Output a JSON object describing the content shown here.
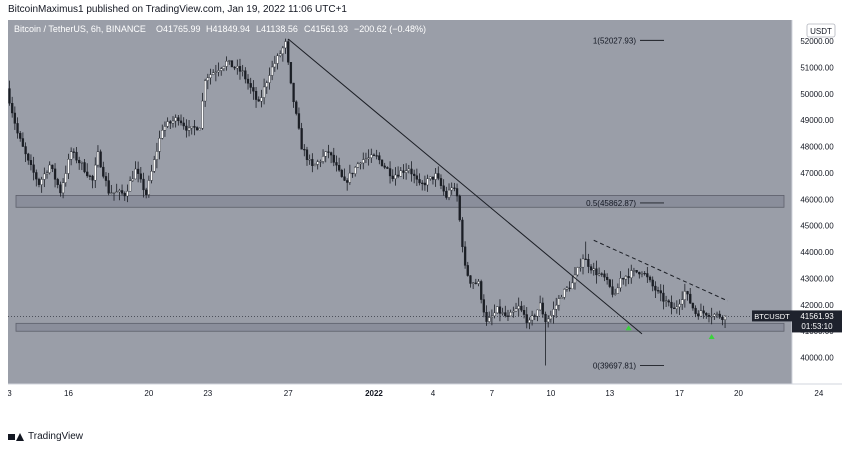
{
  "header": {
    "publisher_line": "BitcoinMaximus1 published on TradingView.com, Jan 19, 2022 11:06 UTC+1"
  },
  "chart_data": {
    "type": "candlestick",
    "title": "Bitcoin / TetherUS, 6h, BINANCE",
    "ohlc_label": {
      "o": "O41765.99",
      "h": "H41849.94",
      "l": "L41138.56",
      "c": "C41561.93",
      "chg": "−200.62 (−0.48%)"
    },
    "currency": "USDT",
    "ylim": [
      39000,
      52800
    ],
    "y_ticks": [
      40000,
      41000,
      42000,
      43000,
      44000,
      45000,
      46000,
      47000,
      48000,
      49000,
      50000,
      51000,
      52000
    ],
    "y_tick_labels": [
      "40000.00",
      "41000.00",
      "42000.00",
      "43000.00",
      "44000.00",
      "45000.00",
      "46000.00",
      "47000.00",
      "48000.00",
      "49000.00",
      "50000.00",
      "51000.00",
      "52000.00"
    ],
    "x_tick_labels": [
      "3",
      "16",
      "20",
      "23",
      "27",
      "2022",
      "4",
      "7",
      "10",
      "13",
      "17",
      "20",
      "24"
    ],
    "x_tick_index": [
      0,
      22,
      52,
      74,
      104,
      136,
      158,
      180,
      202,
      224,
      250,
      272,
      302
    ],
    "candle_count": 268,
    "key_prices": [
      {
        "d": 0,
        "p": 50200
      },
      {
        "d": 4,
        "p": 48500
      },
      {
        "d": 8,
        "p": 47400
      },
      {
        "d": 12,
        "p": 46600
      },
      {
        "d": 16,
        "p": 47300
      },
      {
        "d": 20,
        "p": 46300
      },
      {
        "d": 24,
        "p": 47800
      },
      {
        "d": 28,
        "p": 47300
      },
      {
        "d": 32,
        "p": 46700
      },
      {
        "d": 34,
        "p": 47700
      },
      {
        "d": 38,
        "p": 46300
      },
      {
        "d": 44,
        "p": 46200
      },
      {
        "d": 48,
        "p": 47100
      },
      {
        "d": 52,
        "p": 46200
      },
      {
        "d": 58,
        "p": 48700
      },
      {
        "d": 64,
        "p": 49100
      },
      {
        "d": 68,
        "p": 48600
      },
      {
        "d": 72,
        "p": 48800
      },
      {
        "d": 74,
        "p": 50600
      },
      {
        "d": 82,
        "p": 51200
      },
      {
        "d": 88,
        "p": 50800
      },
      {
        "d": 94,
        "p": 49600
      },
      {
        "d": 98,
        "p": 50800
      },
      {
        "d": 104,
        "p": 51900
      },
      {
        "d": 106,
        "p": 50300
      },
      {
        "d": 110,
        "p": 48000
      },
      {
        "d": 114,
        "p": 47200
      },
      {
        "d": 120,
        "p": 47800
      },
      {
        "d": 126,
        "p": 46600
      },
      {
        "d": 132,
        "p": 47500
      },
      {
        "d": 138,
        "p": 47600
      },
      {
        "d": 144,
        "p": 46900
      },
      {
        "d": 150,
        "p": 47200
      },
      {
        "d": 154,
        "p": 46500
      },
      {
        "d": 160,
        "p": 46900
      },
      {
        "d": 164,
        "p": 46100
      },
      {
        "d": 166,
        "p": 46500
      },
      {
        "d": 168,
        "p": 46100
      },
      {
        "d": 171,
        "p": 43400
      },
      {
        "d": 173,
        "p": 42900
      },
      {
        "d": 176,
        "p": 42800
      },
      {
        "d": 179,
        "p": 41300
      },
      {
        "d": 183,
        "p": 41800
      },
      {
        "d": 187,
        "p": 41500
      },
      {
        "d": 191,
        "p": 41900
      },
      {
        "d": 195,
        "p": 41300
      },
      {
        "d": 199,
        "p": 42000
      },
      {
        "d": 201,
        "p": 41400
      },
      {
        "d": 203,
        "p": 41600
      },
      {
        "d": 207,
        "p": 42400
      },
      {
        "d": 211,
        "p": 42800
      },
      {
        "d": 215,
        "p": 43800
      },
      {
        "d": 219,
        "p": 43300
      },
      {
        "d": 223,
        "p": 43000
      },
      {
        "d": 227,
        "p": 42300
      },
      {
        "d": 229,
        "p": 43000
      },
      {
        "d": 233,
        "p": 43200
      },
      {
        "d": 237,
        "p": 43300
      },
      {
        "d": 241,
        "p": 42700
      },
      {
        "d": 245,
        "p": 42200
      },
      {
        "d": 249,
        "p": 41800
      },
      {
        "d": 253,
        "p": 42500
      },
      {
        "d": 257,
        "p": 41700
      },
      {
        "d": 261,
        "p": 41700
      },
      {
        "d": 265,
        "p": 41600
      },
      {
        "d": 267,
        "p": 41562
      }
    ],
    "extreme_wicks": [
      {
        "d": 104,
        "high": 52080
      },
      {
        "d": 200,
        "low": 39700
      },
      {
        "d": 215,
        "high": 44400
      }
    ],
    "fib_levels": [
      {
        "label": "1(52027.93)",
        "price": 52027.93
      },
      {
        "label": "0.5(45862.87)",
        "price": 45862.87
      },
      {
        "label": "0(39697.81)",
        "price": 39697.81
      }
    ],
    "zones": [
      {
        "from": 45700,
        "to": 46150
      },
      {
        "from": 41000,
        "to": 41300
      }
    ],
    "trendlines": [
      {
        "style": "solid",
        "from": {
          "d": 104,
          "p": 52080
        },
        "to": {
          "d": 236,
          "p": 40900
        }
      },
      {
        "style": "dashed",
        "from": {
          "d": 218,
          "p": 44450
        },
        "to": {
          "d": 268,
          "p": 42150
        }
      }
    ],
    "markers": [
      {
        "d": 231,
        "p": 41150
      },
      {
        "d": 262,
        "p": 40820
      }
    ],
    "last_price": {
      "symbol": "BTCUSDT",
      "price": "41561.93",
      "countdown": "01:53:10",
      "value": 41561.93
    }
  },
  "colors": {
    "background": "#9a9ea8",
    "bull": "#ffffff",
    "bear": "#1b1e25",
    "zone": "#7d8190",
    "marker": "#3bd23d",
    "price_tag": "#1e222d"
  },
  "footer": {
    "brand": "TradingView"
  }
}
